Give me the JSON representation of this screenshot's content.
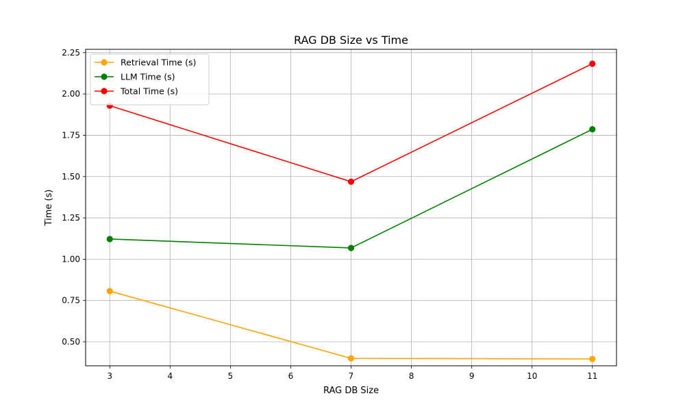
{
  "chart_data": {
    "type": "line",
    "title": "RAG DB Size vs Time",
    "xlabel": "RAG DB Size",
    "ylabel": "Time (s)",
    "x": [
      3,
      7,
      11
    ],
    "xlim": [
      2.6,
      11.4
    ],
    "ylim": [
      0.355,
      2.27
    ],
    "xticks": [
      3,
      4,
      5,
      6,
      7,
      8,
      9,
      10,
      11
    ],
    "yticks": [
      0.5,
      0.75,
      1.0,
      1.25,
      1.5,
      1.75,
      2.0,
      2.25
    ],
    "grid": true,
    "legend_position": "top-left",
    "series": [
      {
        "name": "Retrieval Time (s)",
        "color": "#ffa500",
        "marker": "circle",
        "values": [
          0.807,
          0.4,
          0.396
        ]
      },
      {
        "name": "LLM Time (s)",
        "color": "#008000",
        "marker": "circle",
        "values": [
          1.122,
          1.068,
          1.786
        ]
      },
      {
        "name": "Total Time (s)",
        "color": "#ff0000",
        "marker": "circle",
        "values": [
          1.929,
          1.469,
          2.183
        ]
      }
    ]
  }
}
